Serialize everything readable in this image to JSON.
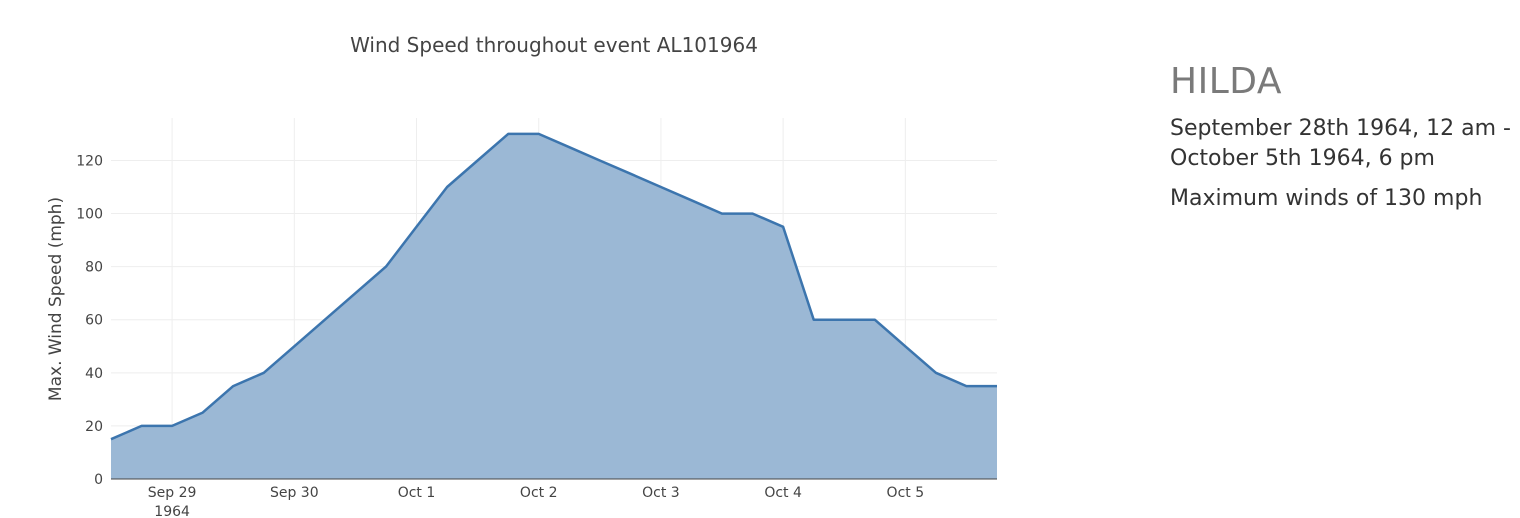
{
  "chart_data": {
    "type": "area",
    "title": "Wind Speed throughout event AL101964",
    "xlabel": "",
    "ylabel": "Max. Wind Speed (mph)",
    "x_range": [
      "1964-09-28 12:00",
      "1964-10-05 18:00"
    ],
    "ylim": [
      0,
      136
    ],
    "y_ticks": [
      0,
      20,
      40,
      60,
      80,
      100,
      120
    ],
    "x_ticks": [
      {
        "value": "1964-09-29 00:00",
        "label": "Sep 29",
        "sublabel": "1964"
      },
      {
        "value": "1964-09-30 00:00",
        "label": "Sep 30",
        "sublabel": ""
      },
      {
        "value": "1964-10-01 00:00",
        "label": "Oct 1",
        "sublabel": ""
      },
      {
        "value": "1964-10-02 00:00",
        "label": "Oct 2",
        "sublabel": ""
      },
      {
        "value": "1964-10-03 00:00",
        "label": "Oct 3",
        "sublabel": ""
      },
      {
        "value": "1964-10-04 00:00",
        "label": "Oct 4",
        "sublabel": ""
      },
      {
        "value": "1964-10-05 00:00",
        "label": "Oct 5",
        "sublabel": ""
      }
    ],
    "grid": true,
    "legend": false,
    "colors": {
      "line": "#3c75ae",
      "fill": "#9bb8d5",
      "grid": "#eeeeee"
    },
    "series": [
      {
        "x": [
          "1964-09-28 12:00",
          "1964-09-28 18:00",
          "1964-09-29 00:00",
          "1964-09-29 06:00",
          "1964-09-29 12:00",
          "1964-09-29 18:00",
          "1964-09-30 00:00",
          "1964-09-30 06:00",
          "1964-09-30 12:00",
          "1964-09-30 18:00",
          "1964-10-01 00:00",
          "1964-10-01 06:00",
          "1964-10-01 12:00",
          "1964-10-01 18:00",
          "1964-10-02 00:00",
          "1964-10-02 06:00",
          "1964-10-02 12:00",
          "1964-10-02 18:00",
          "1964-10-03 00:00",
          "1964-10-03 06:00",
          "1964-10-03 12:00",
          "1964-10-03 18:00",
          "1964-10-04 00:00",
          "1964-10-04 06:00",
          "1964-10-04 12:00",
          "1964-10-04 18:00",
          "1964-10-05 00:00",
          "1964-10-05 06:00",
          "1964-10-05 12:00",
          "1964-10-05 18:00"
        ],
        "y": [
          15,
          20,
          20,
          25,
          35,
          40,
          50,
          60,
          70,
          80,
          95,
          110,
          120,
          130,
          130,
          125,
          120,
          115,
          110,
          105,
          100,
          100,
          95,
          60,
          60,
          60,
          50,
          40,
          35,
          35
        ]
      }
    ]
  },
  "info": {
    "name": "HILDA",
    "dates": "September 28th 1964, 12 am - October 5th 1964, 6 pm",
    "max_winds": "Maximum winds of 130 mph"
  }
}
